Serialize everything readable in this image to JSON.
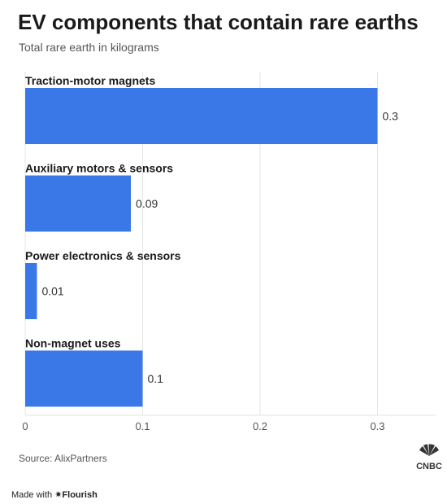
{
  "header": {
    "title": "EV components that contain rare earths",
    "subtitle": "Total rare earth in kilograms"
  },
  "chart_data": {
    "type": "bar",
    "orientation": "horizontal",
    "categories": [
      "Traction-motor magnets",
      "Auxiliary motors & sensors",
      "Power electronics & sensors",
      "Non-magnet uses"
    ],
    "values": [
      0.3,
      0.09,
      0.01,
      0.1
    ],
    "value_labels": [
      "0.3",
      "0.09",
      "0.01",
      "0.1"
    ],
    "xlim": [
      0,
      0.35
    ],
    "xticks": [
      0,
      0.1,
      0.2,
      0.3
    ],
    "xtick_labels": [
      "0",
      "0.1",
      "0.2",
      "0.3"
    ],
    "grid": true,
    "bar_color": "#3b78e7"
  },
  "footer": {
    "source": "Source: AlixPartners",
    "made_with": "Made with",
    "brand": "Flourish",
    "logo_text": "CNBC"
  }
}
